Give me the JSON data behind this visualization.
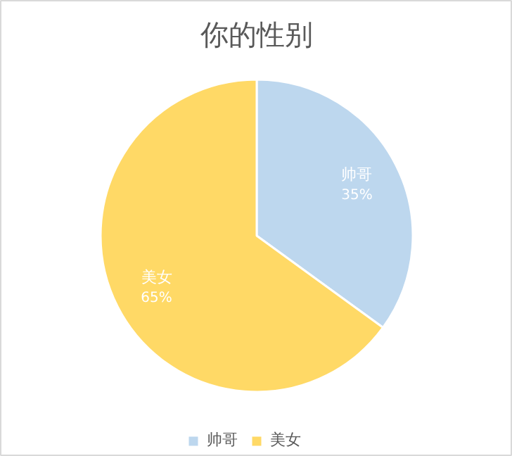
{
  "chart_data": {
    "type": "pie",
    "title": "你的性别",
    "categories": [
      "帅哥",
      "美女"
    ],
    "values": [
      35,
      65
    ],
    "colors": [
      "#bdd7ee",
      "#ffd966"
    ],
    "value_labels": [
      "35%",
      "65%"
    ],
    "legend": "bottom"
  }
}
